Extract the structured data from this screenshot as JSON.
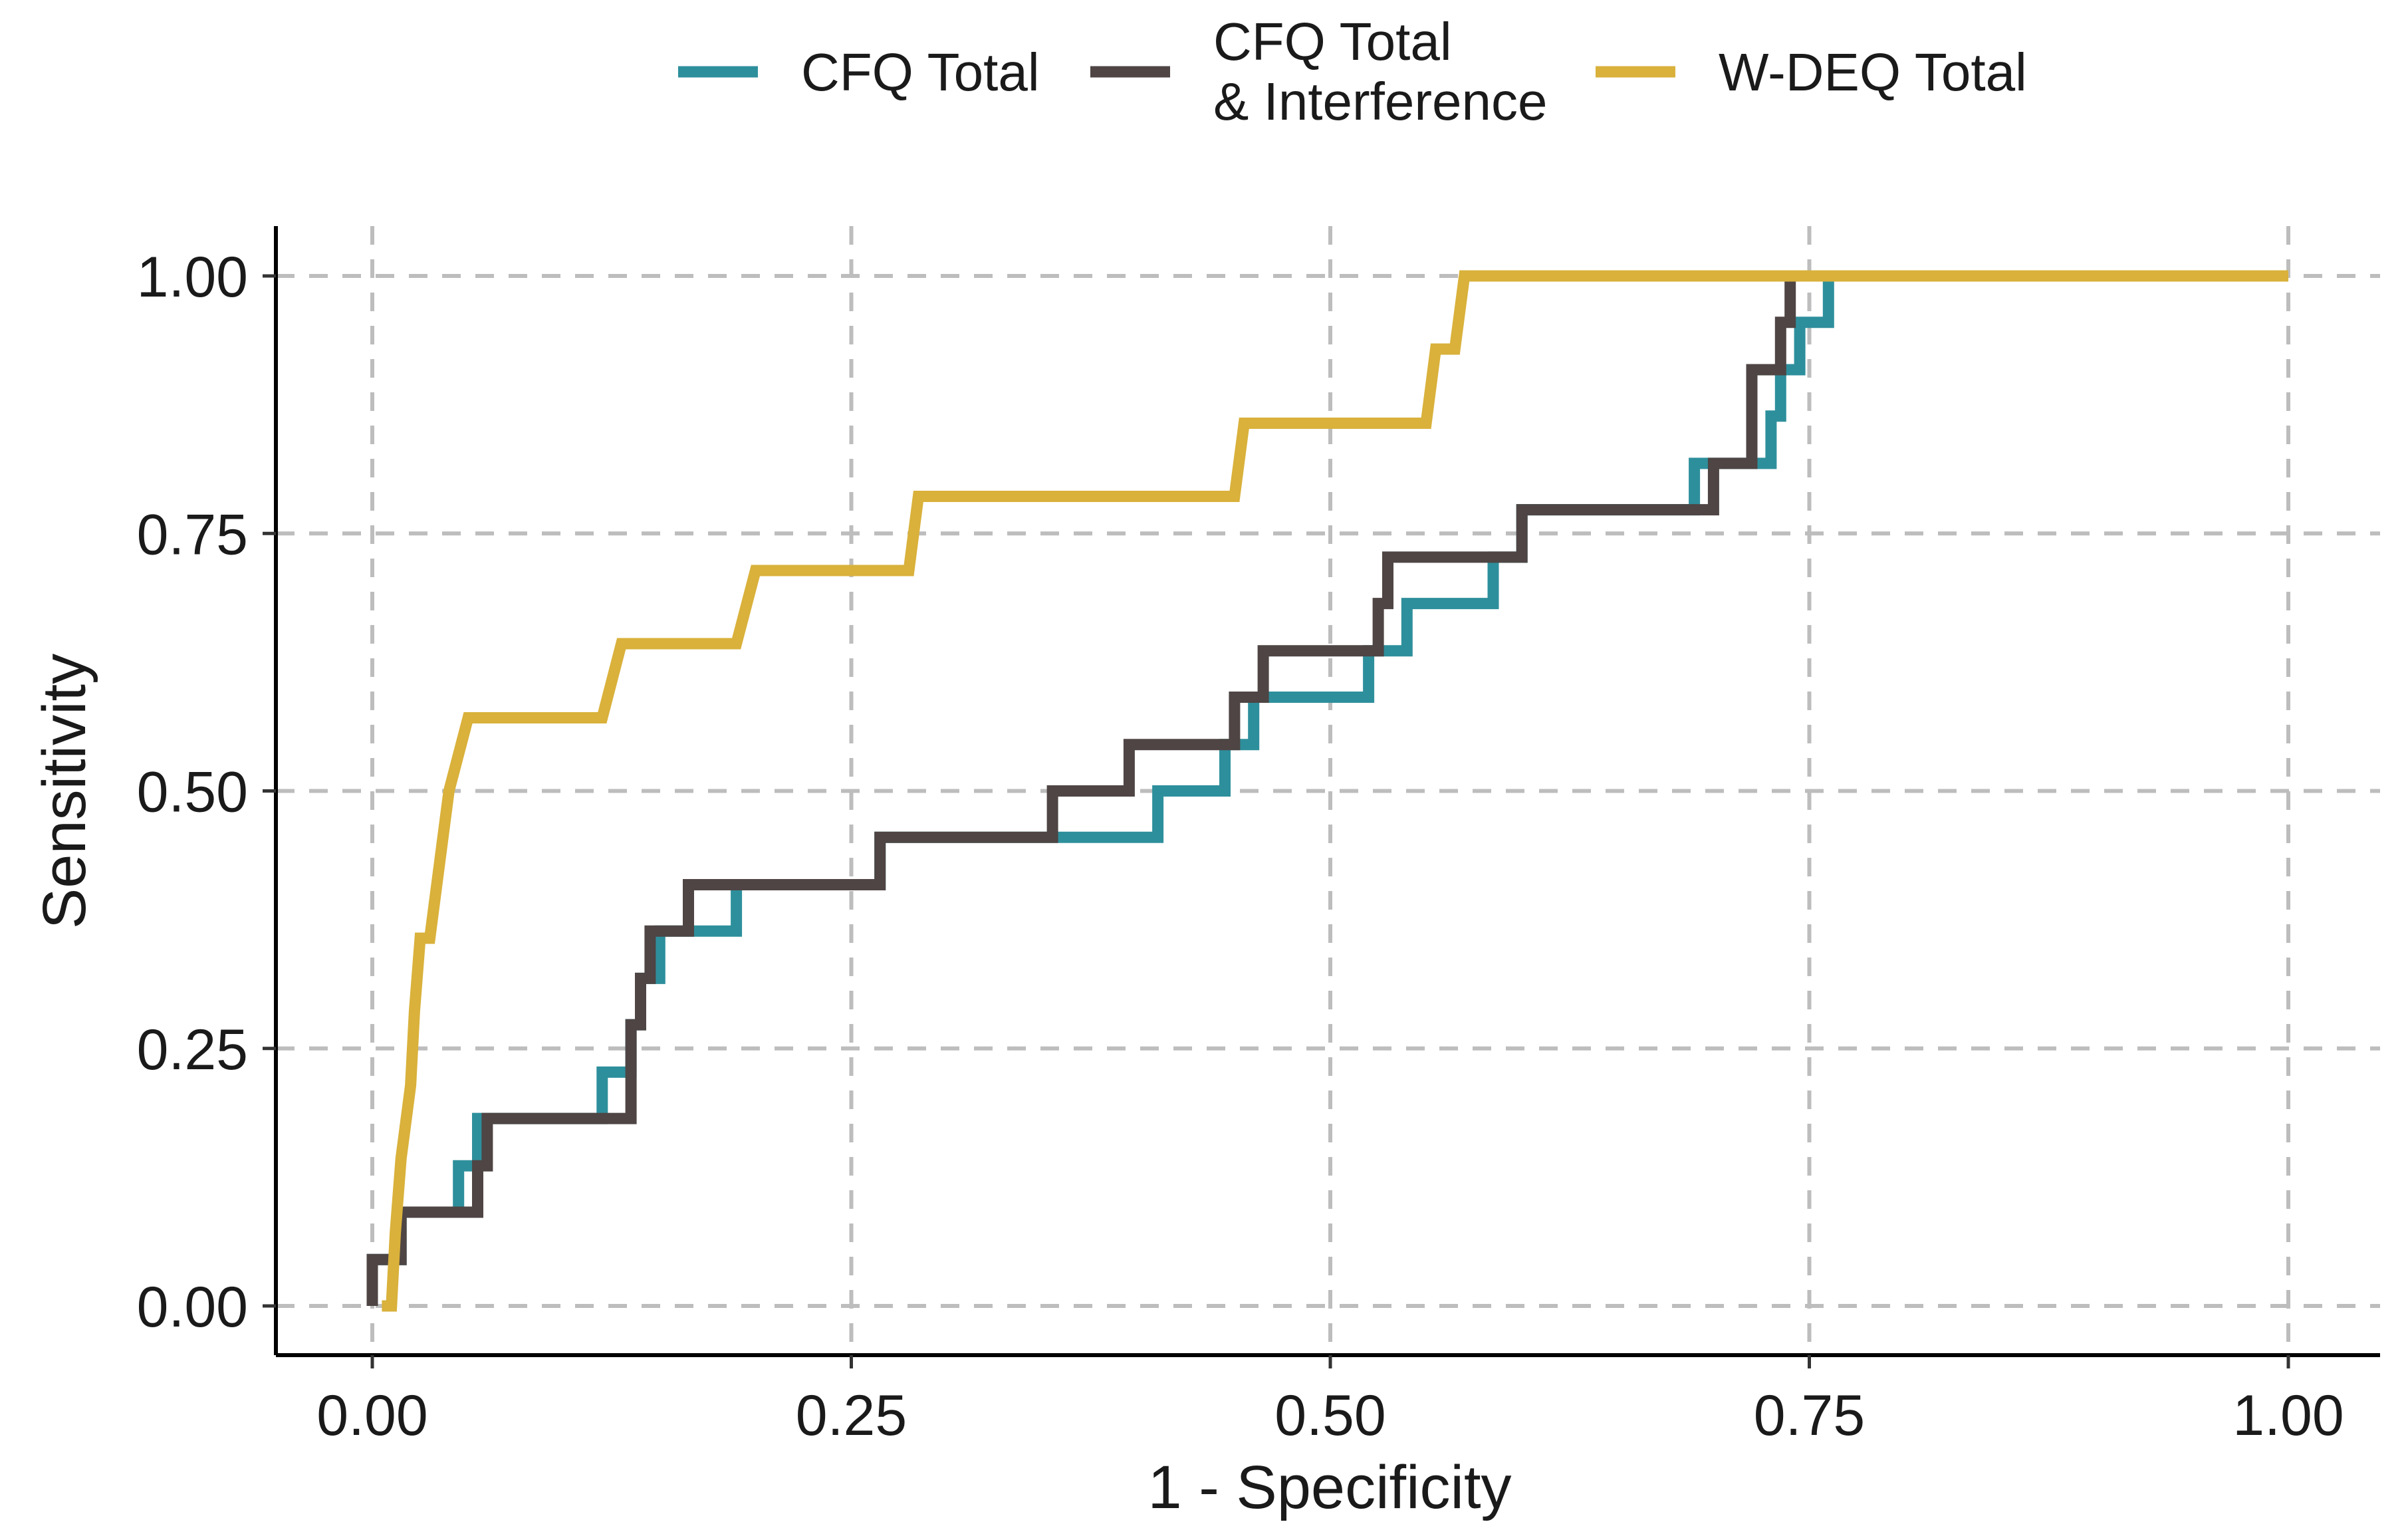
{
  "chart_data": {
    "type": "line",
    "subtype": "step",
    "title": "",
    "xlabel": "1 - Specificity",
    "ylabel": "Sensitivity",
    "xlim": [
      0,
      1
    ],
    "ylim": [
      0,
      1
    ],
    "xticks": [
      "0.00",
      "0.25",
      "0.50",
      "0.75",
      "1.00"
    ],
    "yticks": [
      "0.00",
      "0.25",
      "0.50",
      "0.75",
      "1.00"
    ],
    "grid": "dashed major gridlines on both axes",
    "legend_position": "top",
    "series": [
      {
        "name": "CFQ Total",
        "color": "#2E8F9C",
        "x": [
          0.0,
          0.0,
          0.015,
          0.015,
          0.045,
          0.045,
          0.055,
          0.055,
          0.12,
          0.12,
          0.135,
          0.135,
          0.14,
          0.14,
          0.15,
          0.15,
          0.19,
          0.19,
          0.265,
          0.265,
          0.41,
          0.41,
          0.445,
          0.445,
          0.46,
          0.46,
          0.52,
          0.52,
          0.54,
          0.54,
          0.585,
          0.585,
          0.6,
          0.6,
          0.69,
          0.69,
          0.73,
          0.73,
          0.735,
          0.735,
          0.745,
          0.745,
          0.76,
          0.76,
          1.0
        ],
        "y": [
          0.0,
          0.045,
          0.045,
          0.091,
          0.091,
          0.136,
          0.136,
          0.182,
          0.182,
          0.227,
          0.227,
          0.273,
          0.273,
          0.318,
          0.318,
          0.364,
          0.364,
          0.409,
          0.409,
          0.455,
          0.455,
          0.5,
          0.5,
          0.545,
          0.545,
          0.591,
          0.591,
          0.636,
          0.636,
          0.682,
          0.682,
          0.727,
          0.727,
          0.773,
          0.773,
          0.818,
          0.818,
          0.864,
          0.864,
          0.909,
          0.909,
          0.955,
          0.955,
          1.0,
          1.0
        ]
      },
      {
        "name": "CFQ Total & Interference",
        "color": "#4E4544",
        "x": [
          0.0,
          0.0,
          0.015,
          0.015,
          0.055,
          0.055,
          0.06,
          0.06,
          0.135,
          0.135,
          0.14,
          0.14,
          0.145,
          0.145,
          0.165,
          0.165,
          0.265,
          0.265,
          0.355,
          0.355,
          0.395,
          0.395,
          0.45,
          0.45,
          0.465,
          0.465,
          0.525,
          0.525,
          0.53,
          0.53,
          0.6,
          0.6,
          0.7,
          0.7,
          0.72,
          0.72,
          0.735,
          0.735,
          0.74,
          0.74,
          1.0
        ],
        "y": [
          0.0,
          0.045,
          0.045,
          0.091,
          0.091,
          0.136,
          0.136,
          0.182,
          0.182,
          0.273,
          0.273,
          0.318,
          0.318,
          0.364,
          0.364,
          0.409,
          0.409,
          0.455,
          0.455,
          0.5,
          0.5,
          0.545,
          0.545,
          0.591,
          0.591,
          0.636,
          0.636,
          0.682,
          0.682,
          0.727,
          0.727,
          0.773,
          0.773,
          0.818,
          0.818,
          0.909,
          0.909,
          0.955,
          0.955,
          1.0,
          1.0
        ]
      },
      {
        "name": "W-DEQ Total",
        "color": "#D9B13B",
        "x": [
          0.005,
          0.01,
          0.012,
          0.015,
          0.02,
          0.022,
          0.025,
          0.03,
          0.04,
          0.05,
          0.12,
          0.13,
          0.19,
          0.2,
          0.28,
          0.285,
          0.45,
          0.455,
          0.55,
          0.555,
          0.565,
          0.57,
          1.0
        ],
        "y": [
          0.0,
          0.0,
          0.071,
          0.143,
          0.214,
          0.286,
          0.357,
          0.357,
          0.5,
          0.571,
          0.571,
          0.643,
          0.643,
          0.714,
          0.714,
          0.786,
          0.786,
          0.857,
          0.857,
          0.929,
          0.929,
          1.0,
          1.0
        ]
      }
    ]
  }
}
